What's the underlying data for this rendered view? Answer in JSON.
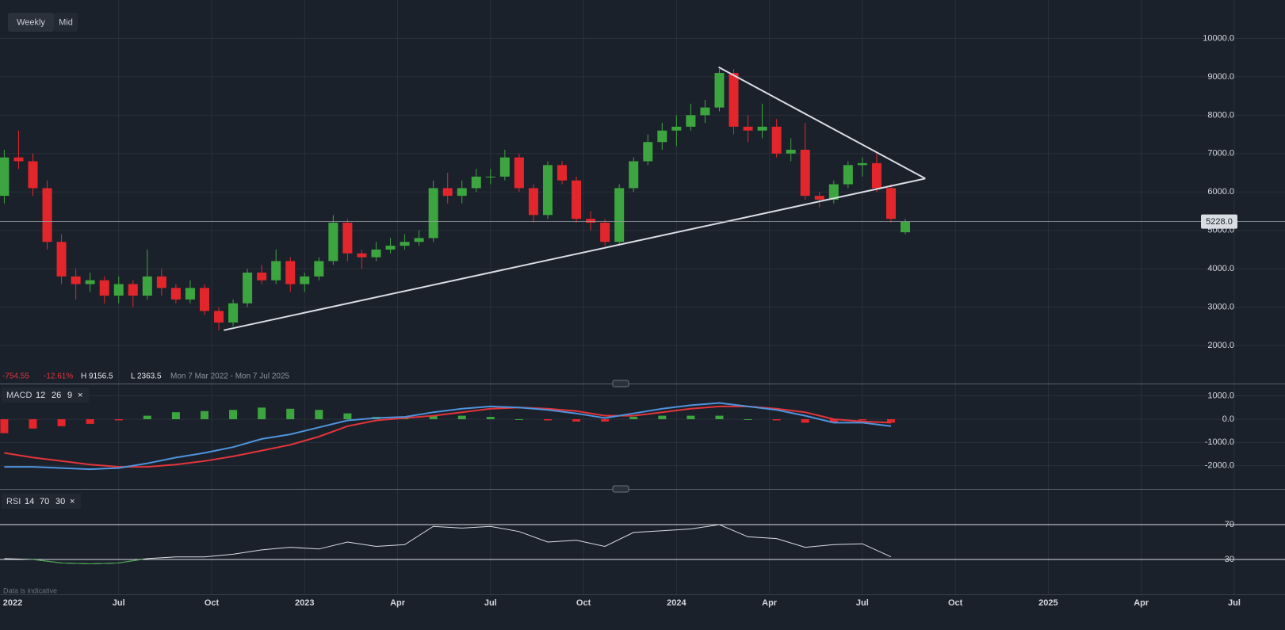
{
  "toolbar": {
    "interval": "Weekly",
    "price_mode": "Mid"
  },
  "footer_note": "Data is indicative",
  "chart_data": [
    {
      "type": "candlestick",
      "x": [
        10,
        12,
        14,
        16,
        18,
        20,
        22,
        24,
        26,
        28,
        30,
        32,
        34,
        36,
        38,
        40,
        42,
        44,
        46,
        48,
        50,
        52,
        54,
        56,
        58,
        60,
        62,
        64,
        66,
        68,
        70,
        72,
        74,
        76,
        78,
        80,
        82,
        84,
        86,
        88,
        90,
        92,
        94,
        96,
        98,
        100,
        102,
        104,
        106,
        108,
        110,
        112,
        114,
        116,
        118,
        120,
        122,
        124,
        126,
        128,
        130,
        132,
        134,
        136
      ],
      "open": [
        5900,
        6900,
        6800,
        6100,
        4700,
        3800,
        3600,
        3700,
        3300,
        3600,
        3300,
        3800,
        3500,
        3200,
        3500,
        2900,
        2600,
        3100,
        3900,
        3700,
        4200,
        3600,
        3800,
        4200,
        5200,
        4400,
        4300,
        4500,
        4600,
        4700,
        4800,
        6100,
        5900,
        6100,
        6400,
        6400,
        6900,
        6100,
        5400,
        6700,
        6300,
        5300,
        5200,
        4700,
        6100,
        6800,
        7300,
        7600,
        7700,
        8000,
        8200,
        9100,
        7700,
        7600,
        7700,
        7000,
        7100,
        5900,
        5800,
        6200,
        6700,
        6750,
        6100,
        4950
      ],
      "high": [
        7100,
        7600,
        7000,
        6300,
        4900,
        4000,
        3900,
        3800,
        3800,
        3700,
        4500,
        4000,
        3600,
        3700,
        3600,
        3000,
        3200,
        4000,
        4100,
        4500,
        4300,
        3900,
        4300,
        5400,
        5300,
        4500,
        4700,
        4800,
        4900,
        5000,
        6300,
        6500,
        6300,
        6600,
        6600,
        7100,
        7000,
        6200,
        6800,
        6800,
        6400,
        5500,
        5300,
        6200,
        6900,
        7500,
        7800,
        8000,
        8300,
        8400,
        9200,
        9200,
        8000,
        8300,
        7900,
        7400,
        7800,
        6000,
        6300,
        6800,
        6900,
        7000,
        6200,
        5300
      ],
      "low": [
        5700,
        6600,
        5900,
        4500,
        3600,
        3200,
        3400,
        3100,
        3100,
        3000,
        3200,
        3300,
        3100,
        3100,
        2800,
        2400,
        2500,
        3000,
        3600,
        3600,
        3400,
        3400,
        3700,
        4100,
        4200,
        4000,
        4200,
        4400,
        4500,
        4600,
        4700,
        5700,
        5700,
        6000,
        6200,
        6300,
        6000,
        5200,
        5300,
        6200,
        5200,
        5000,
        4600,
        4600,
        6000,
        6700,
        7100,
        7200,
        7600,
        7800,
        8100,
        7500,
        7300,
        7400,
        6900,
        6800,
        5800,
        5600,
        5700,
        6100,
        6400,
        6000,
        5200,
        4900
      ],
      "close": [
        6900,
        6800,
        6100,
        4700,
        3800,
        3600,
        3700,
        3300,
        3600,
        3300,
        3800,
        3500,
        3200,
        3500,
        2900,
        2600,
        3100,
        3900,
        3700,
        4200,
        3600,
        3800,
        4200,
        5200,
        4400,
        4300,
        4500,
        4600,
        4700,
        4800,
        6100,
        5900,
        6100,
        6400,
        6400,
        6900,
        6100,
        5400,
        6700,
        6300,
        5300,
        5200,
        4700,
        6100,
        6800,
        7300,
        7600,
        7700,
        8000,
        8200,
        9100,
        7700,
        7600,
        7700,
        7000,
        7100,
        5900,
        5800,
        6200,
        6700,
        6750,
        6100,
        5300,
        5228
      ],
      "up_color": "#3da53f",
      "down_color": "#e3262c",
      "xlim": [
        9.4,
        189.1
      ],
      "xticks": [
        {
          "value": 0,
          "label": "2022"
        },
        {
          "value": 26,
          "label": "Jul"
        },
        {
          "value": 39,
          "label": "Oct"
        },
        {
          "value": 52,
          "label": "2023"
        },
        {
          "value": 65,
          "label": "Apr"
        },
        {
          "value": 78,
          "label": "Jul"
        },
        {
          "value": 91,
          "label": "Oct"
        },
        {
          "value": 104,
          "label": "2024"
        },
        {
          "value": 117,
          "label": "Apr"
        },
        {
          "value": 130,
          "label": "Jul"
        },
        {
          "value": 143,
          "label": "Oct"
        },
        {
          "value": 156,
          "label": "2025"
        },
        {
          "value": 169,
          "label": "Apr"
        },
        {
          "value": 182,
          "label": "Jul"
        }
      ],
      "ylim": [
        1000,
        11000
      ],
      "yticks": [
        {
          "value": 2000,
          "label": "2000.0"
        },
        {
          "value": 3000,
          "label": "3000.0"
        },
        {
          "value": 4000,
          "label": "4000.0"
        },
        {
          "value": 5000,
          "label": "5000.0"
        },
        {
          "value": 6000,
          "label": "6000.0"
        },
        {
          "value": 7000,
          "label": "7000.0"
        },
        {
          "value": 8000,
          "label": "8000.0"
        },
        {
          "value": 9000,
          "label": "9000.0"
        },
        {
          "value": 10000,
          "label": "10000.0"
        }
      ],
      "grid": true,
      "last": {
        "value": 5228,
        "label": "5228.0"
      },
      "trendlines": [
        {
          "points": [
            [
              40.7,
              2400
            ],
            [
              138.8,
              6350
            ]
          ]
        },
        {
          "points": [
            [
              109.9,
              9250
            ],
            [
              138.8,
              6350
            ]
          ]
        }
      ],
      "stats": {
        "change": "-754.55",
        "change_pct": "-12.61%",
        "high": "H 9156.5",
        "low": "L 2363.5",
        "range": "Mon 7 Mar 2022 - Mon 7 Jul 2025"
      }
    },
    {
      "type": "macd",
      "title": "MACD",
      "params": [
        12,
        26,
        9
      ],
      "close_icon": "×",
      "x": [
        10,
        14,
        18,
        22,
        26,
        30,
        34,
        38,
        42,
        46,
        50,
        54,
        58,
        62,
        66,
        70,
        74,
        78,
        82,
        86,
        90,
        94,
        98,
        102,
        106,
        110,
        114,
        118,
        122,
        126,
        130,
        134
      ],
      "macd": [
        -2050,
        -2050,
        -2100,
        -2150,
        -2100,
        -1900,
        -1650,
        -1450,
        -1200,
        -850,
        -650,
        -350,
        -50,
        50,
        100,
        300,
        450,
        550,
        500,
        400,
        250,
        50,
        250,
        450,
        600,
        700,
        550,
        400,
        150,
        -150,
        -150,
        -300
      ],
      "signal": [
        -1450,
        -1650,
        -1800,
        -1950,
        -2050,
        -2050,
        -1950,
        -1800,
        -1600,
        -1350,
        -1100,
        -750,
        -300,
        -50,
        50,
        150,
        300,
        450,
        500,
        450,
        350,
        150,
        150,
        300,
        450,
        550,
        550,
        450,
        300,
        0,
        -100,
        -150
      ],
      "histogram": [
        -600,
        -400,
        -300,
        -200,
        -50,
        150,
        300,
        350,
        400,
        500,
        450,
        400,
        250,
        100,
        50,
        150,
        150,
        100,
        0,
        -50,
        -100,
        -100,
        100,
        150,
        150,
        150,
        0,
        -50,
        -150,
        -150,
        -50,
        -150
      ],
      "macd_color": "#4f94dc",
      "signal_color": "#e3343a",
      "up_color": "#3da53f",
      "down_color": "#e3262c",
      "ylim": [
        -3000,
        1500
      ],
      "yticks": [
        {
          "value": -2000,
          "label": "-2000.0"
        },
        {
          "value": -1000,
          "label": "-1000.0"
        },
        {
          "value": 0,
          "label": "0.0"
        },
        {
          "value": 1000,
          "label": "1000.0"
        }
      ],
      "grid": true
    },
    {
      "type": "rsi",
      "title": "RSI",
      "params": [
        14,
        70,
        30
      ],
      "close_icon": "×",
      "x": [
        10,
        14,
        18,
        22,
        26,
        30,
        34,
        38,
        42,
        46,
        50,
        54,
        58,
        62,
        66,
        70,
        74,
        78,
        82,
        86,
        90,
        94,
        98,
        102,
        106,
        110,
        114,
        118,
        122,
        126,
        130,
        134
      ],
      "values": [
        31,
        30,
        26,
        25,
        26,
        31,
        33,
        33,
        36,
        41,
        44,
        42,
        50,
        45,
        47,
        68,
        66,
        68,
        62,
        50,
        52,
        45,
        61,
        63,
        65,
        70,
        56,
        54,
        44,
        47,
        48,
        33
      ],
      "color": "#d9dde3",
      "oversold_color": "#3da53f",
      "ylim": [
        -10,
        110
      ],
      "yticks": [
        30,
        70
      ]
    }
  ]
}
